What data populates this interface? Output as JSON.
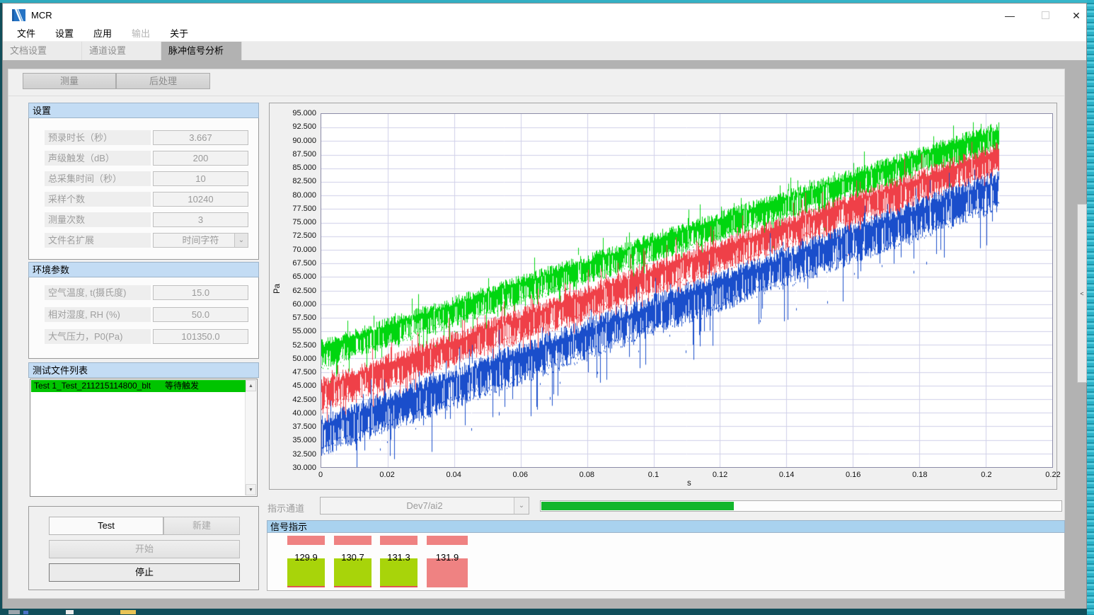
{
  "window": {
    "title": "MCR",
    "controls": {
      "minimize": "—",
      "close": "✕"
    }
  },
  "menu": {
    "items": [
      {
        "label": "文件",
        "enabled": true
      },
      {
        "label": "设置",
        "enabled": true
      },
      {
        "label": "应用",
        "enabled": true
      },
      {
        "label": "输出",
        "enabled": false
      },
      {
        "label": "关于",
        "enabled": true
      }
    ]
  },
  "tabs": [
    {
      "label": "文档设置",
      "active": false
    },
    {
      "label": "通道设置",
      "active": false
    },
    {
      "label": "脉冲信号分析",
      "active": true
    }
  ],
  "subtabs": [
    {
      "label": "测量"
    },
    {
      "label": "后处理"
    }
  ],
  "settings_panel": {
    "title": "设置",
    "fields": [
      {
        "label": "预录时长（秒）",
        "value": "3.667",
        "type": "input"
      },
      {
        "label": "声级触发（dB）",
        "value": "200",
        "type": "input"
      },
      {
        "label": "总采集时间（秒）",
        "value": "10",
        "type": "input"
      },
      {
        "label": "采样个数",
        "value": "10240",
        "type": "input"
      },
      {
        "label": "测量次数",
        "value": "3",
        "type": "input"
      },
      {
        "label": "文件名扩展",
        "value": "时间字符",
        "type": "dropdown"
      }
    ]
  },
  "env_panel": {
    "title": "环境参数",
    "fields": [
      {
        "label": "空气温度, t(摄氏度)",
        "value": "15.0"
      },
      {
        "label": "相对湿度, RH (%)",
        "value": "50.0"
      },
      {
        "label": "大气压力，P0(Pa)",
        "value": "101350.0"
      }
    ]
  },
  "file_list_panel": {
    "title": "测试文件列表",
    "rows": [
      {
        "name": "Test 1_Test_211215114800_blt",
        "status": "等待触发",
        "highlight": "#00c400"
      }
    ]
  },
  "run_controls": {
    "test_name": "Test",
    "new_label": "新建",
    "start_label": "开始",
    "stop_label": "停止"
  },
  "indicator_channel": {
    "label": "指示通道",
    "value": "Dev7/ai2",
    "progress_percent": 37,
    "progress_color": "#13b62c"
  },
  "signal_panel": {
    "title": "信号指示",
    "header_color": "#a9d2ef",
    "indicators": [
      {
        "value": "129.9",
        "box_color": "#a8d40a",
        "strip_color": "#ef8282",
        "underline": true
      },
      {
        "value": "130.7",
        "box_color": "#a8d40a",
        "strip_color": "#ef8282",
        "underline": true
      },
      {
        "value": "131.3",
        "box_color": "#a8d40a",
        "strip_color": "#ef8282",
        "underline": true
      },
      {
        "value": "131.9",
        "box_color": "#ef8282",
        "strip_color": "#ef8282",
        "underline": false
      }
    ]
  },
  "chart_data": {
    "type": "line",
    "title": "",
    "xlabel": "s",
    "ylabel": "Pa",
    "xlim": [
      0,
      0.22
    ],
    "ylim": [
      30,
      95
    ],
    "grid": true,
    "grid_color": "#cfcfe8",
    "xticks": [
      "0",
      "0.02",
      "0.04",
      "0.06",
      "0.08",
      "0.1",
      "0.12",
      "0.14",
      "0.16",
      "0.18",
      "0.2",
      "0.22"
    ],
    "yticks": [
      "95.000",
      "92.500",
      "90.000",
      "87.500",
      "85.000",
      "82.500",
      "80.000",
      "77.500",
      "75.000",
      "72.500",
      "70.000",
      "67.500",
      "65.000",
      "62.500",
      "60.000",
      "57.500",
      "55.000",
      "52.500",
      "50.000",
      "47.500",
      "45.000",
      "42.500",
      "40.000",
      "37.500",
      "35.000",
      "32.500",
      "30.000"
    ],
    "series": [
      {
        "name": "channel-green",
        "color": "#00d60f",
        "x_start": 0,
        "x_end": 0.204,
        "start_mean_pa": 50.8,
        "end_mean_pa": 90.8,
        "band_halfwidth_pa": 2.6,
        "shape": "noisy rising band"
      },
      {
        "name": "channel-red",
        "color": "#ef4048",
        "x_start": 0,
        "x_end": 0.204,
        "start_mean_pa": 43.3,
        "end_mean_pa": 86.8,
        "band_halfwidth_pa": 3.0,
        "shape": "noisy rising band"
      },
      {
        "name": "channel-blue",
        "color": "#1a4ecb",
        "x_start": 0,
        "x_end": 0.204,
        "start_mean_pa": 35.8,
        "end_mean_pa": 81.0,
        "band_halfwidth_pa": 3.6,
        "shape": "noisy rising band"
      }
    ]
  }
}
